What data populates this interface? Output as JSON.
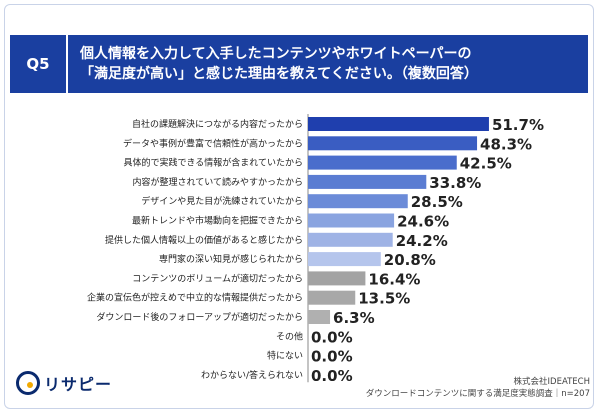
{
  "header": {
    "badge": "Q5",
    "line1": "個人情報を入力して入手したコンテンツやホワイトペーパーの",
    "line2": "「満足度が高い」と感じた理由を教えてください。（複数回答）"
  },
  "brand": {
    "logo_text": "リサピー"
  },
  "source": {
    "company": "株式会社IDEATECH",
    "survey": "ダウンロードコンテンツに関する満足度実態調査｜n=207"
  },
  "colors": {
    "header_bg": "#1a3fa0",
    "bar_shades": [
      "#1f3fae",
      "#3a5dc2",
      "#4a6dcc",
      "#5a7cd2",
      "#6b8bd8",
      "#8aa4e0",
      "#9fb3e5",
      "#b5c5ec",
      "#a3a3a3",
      "#a8a8a8",
      "#b0b0b0"
    ]
  },
  "chart_data": {
    "type": "bar",
    "orientation": "horizontal",
    "unit": "%",
    "categories": [
      "自社の課題解決につながる内容だったから",
      "データや事例が豊富で信頼性が高かったから",
      "具体的で実践できる情報が含まれていたから",
      "内容が整理されていて読みやすかったから",
      "デザインや見た目が洗練されていたから",
      "最新トレンドや市場動向を把握できたから",
      "提供した個人情報以上の価値があると感じたから",
      "専門家の深い知見が感じられたから",
      "コンテンツのボリュームが適切だったから",
      "企業の宣伝色が控えめで中立的な情報提供だったから",
      "ダウンロード後のフォローアップが適切だったから",
      "その他",
      "特にない",
      "わからない/答えられない"
    ],
    "values": [
      51.7,
      48.3,
      42.5,
      33.8,
      28.5,
      24.6,
      24.2,
      20.8,
      16.4,
      13.5,
      6.3,
      0.0,
      0.0,
      0.0
    ],
    "value_labels": [
      "51.7%",
      "48.3%",
      "42.5%",
      "33.8%",
      "28.5%",
      "24.6%",
      "24.2%",
      "20.8%",
      "16.4%",
      "13.5%",
      "6.3%",
      "0.0%",
      "0.0%",
      "0.0%"
    ],
    "xlim": [
      0,
      100
    ]
  }
}
